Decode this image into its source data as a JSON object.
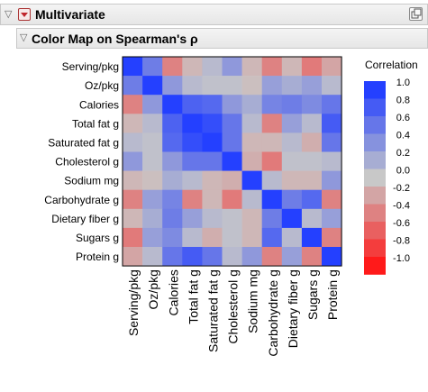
{
  "report": {
    "title": "Multivariate",
    "subtitle": "Color Map on Spearman's ρ"
  },
  "legend": {
    "title": "Correlation",
    "ticks": [
      "1.0",
      "0.8",
      "0.6",
      "0.4",
      "0.2",
      "0.0",
      "-0.2",
      "-0.4",
      "-0.6",
      "-0.8",
      "-1.0"
    ]
  },
  "colors": {
    "positive": "#2440ff",
    "neutral": "#c8c8c8",
    "negative": "#ff1a1a"
  },
  "chart_data": {
    "type": "heatmap",
    "title": "",
    "variables": [
      "Serving/pkg",
      "Oz/pkg",
      "Calories",
      "Total fat g",
      "Saturated fat g",
      "Cholesterol g",
      "Sodium mg",
      "Carbohydrate g",
      "Dietary fiber g",
      "Sugars g",
      "Protein g"
    ],
    "matrix": [
      [
        1.0,
        0.55,
        -0.4,
        -0.1,
        0.1,
        0.35,
        -0.1,
        -0.4,
        -0.1,
        -0.45,
        -0.2
      ],
      [
        0.55,
        1.0,
        0.35,
        0.1,
        0.05,
        0.05,
        -0.05,
        0.3,
        0.2,
        0.3,
        0.1
      ],
      [
        -0.4,
        0.35,
        1.0,
        0.75,
        0.7,
        0.35,
        0.2,
        0.5,
        0.55,
        0.45,
        0.6
      ],
      [
        -0.1,
        0.1,
        0.75,
        1.0,
        0.9,
        0.6,
        0.1,
        -0.4,
        0.3,
        0.1,
        0.8
      ],
      [
        0.1,
        0.05,
        0.7,
        0.9,
        1.0,
        0.6,
        -0.1,
        -0.1,
        0.1,
        -0.15,
        0.6
      ],
      [
        0.35,
        0.05,
        0.35,
        0.6,
        0.6,
        1.0,
        -0.15,
        -0.45,
        0.05,
        0.05,
        0.1
      ],
      [
        -0.1,
        -0.05,
        0.2,
        0.1,
        -0.1,
        -0.15,
        1.0,
        0.1,
        -0.1,
        -0.1,
        0.35
      ],
      [
        -0.4,
        0.3,
        0.5,
        -0.4,
        -0.1,
        -0.45,
        0.1,
        1.0,
        0.55,
        0.7,
        -0.4
      ],
      [
        -0.1,
        0.2,
        0.55,
        0.3,
        0.1,
        0.05,
        -0.1,
        0.55,
        1.0,
        0.1,
        0.3
      ],
      [
        -0.45,
        0.3,
        0.45,
        0.1,
        -0.15,
        0.05,
        -0.1,
        0.7,
        0.1,
        1.0,
        -0.4
      ],
      [
        -0.2,
        0.1,
        0.6,
        0.8,
        0.6,
        0.1,
        0.35,
        -0.4,
        0.3,
        -0.4,
        1.0
      ]
    ],
    "range": [
      -1.0,
      1.0
    ]
  }
}
